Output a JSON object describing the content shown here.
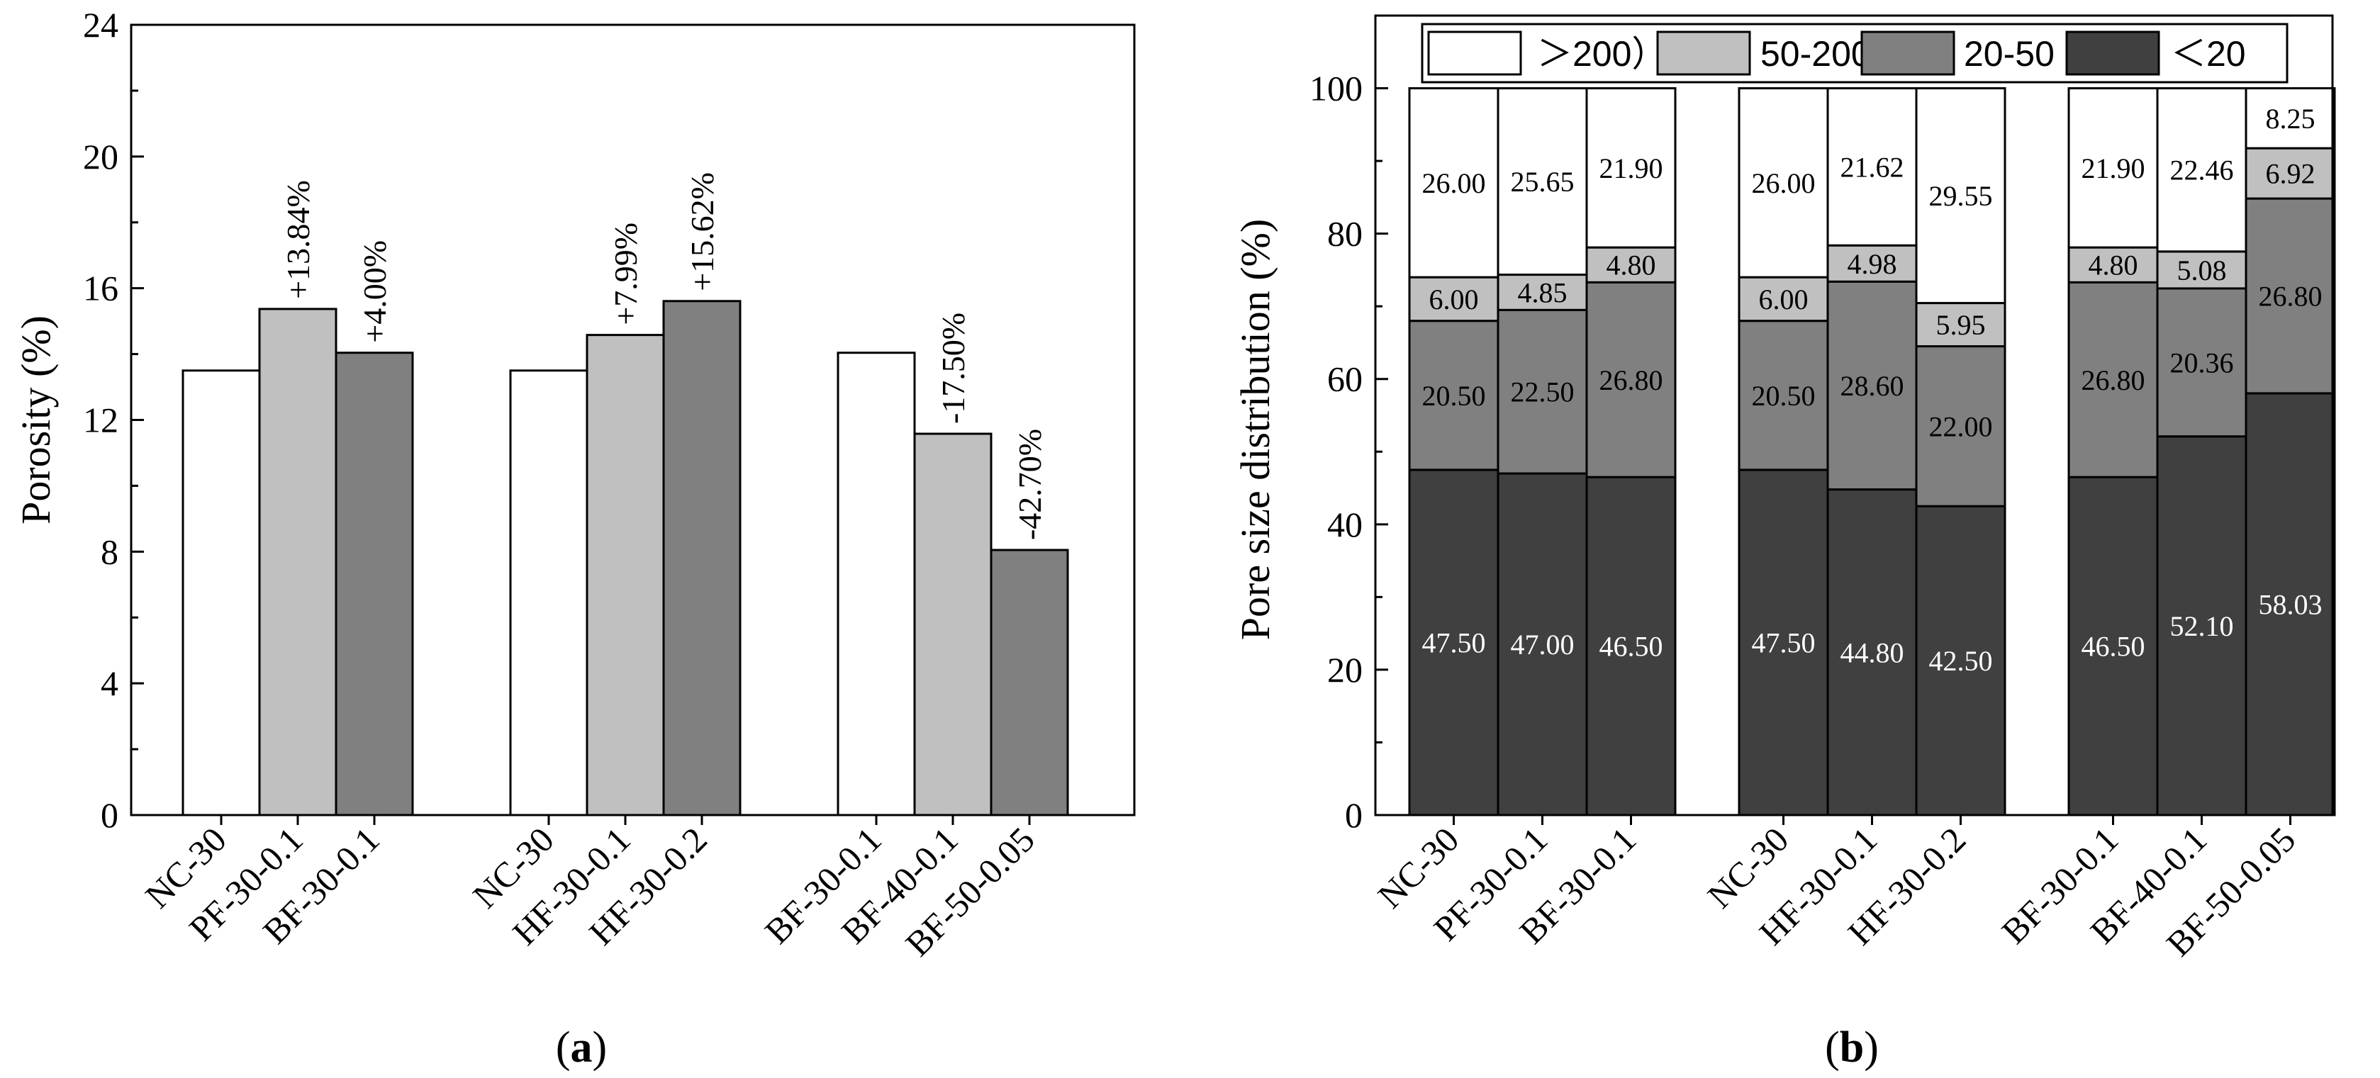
{
  "chart_data": [
    {
      "type": "bar",
      "panel_label": "a",
      "ylabel": "Porosity (%)",
      "xlabel": "",
      "ylim": [
        0,
        24
      ],
      "yticks": [
        "0",
        "4",
        "8",
        "12",
        "16",
        "20",
        "24"
      ],
      "groups": [
        {
          "bars": [
            {
              "label": "NC-30",
              "value": 13.5,
              "color": "#ffffff",
              "annotation": ""
            },
            {
              "label": "PF-30-0.1",
              "value": 15.37,
              "color": "#c0c0c0",
              "annotation": "+13.84%"
            },
            {
              "label": "BF-30-0.1",
              "value": 14.04,
              "color": "#808080",
              "annotation": "+4.00%"
            }
          ]
        },
        {
          "bars": [
            {
              "label": "NC-30",
              "value": 13.5,
              "color": "#ffffff",
              "annotation": ""
            },
            {
              "label": "HF-30-0.1",
              "value": 14.58,
              "color": "#c0c0c0",
              "annotation": "+7.99%"
            },
            {
              "label": "HF-30-0.2",
              "value": 15.61,
              "color": "#808080",
              "annotation": "+15.62%"
            }
          ]
        },
        {
          "bars": [
            {
              "label": "BF-30-0.1",
              "value": 14.04,
              "color": "#ffffff",
              "annotation": ""
            },
            {
              "label": "BF-40-0.1",
              "value": 11.58,
              "color": "#c0c0c0",
              "annotation": "-17.50%"
            },
            {
              "label": "BF-50-0.05",
              "value": 8.05,
              "color": "#808080",
              "annotation": "-42.70%"
            }
          ]
        }
      ]
    },
    {
      "type": "stacked_bar",
      "panel_label": "b",
      "ylabel": "Pore size distribution (%)",
      "xlabel": "",
      "ylim": [
        0,
        110
      ],
      "yticks": [
        "0",
        "20",
        "40",
        "60",
        "80",
        "100"
      ],
      "legend_position": "top",
      "series": [
        {
          "name": "＜20",
          "color": "#404040",
          "label_color": "#ffffff"
        },
        {
          "name": "20-50",
          "color": "#808080",
          "label_color": "#000000"
        },
        {
          "name": "50-200",
          "color": "#c0c0c0",
          "label_color": "#000000"
        },
        {
          "name": "＞200）",
          "color": "#ffffff",
          "label_color": "#000000"
        }
      ],
      "legend_order": [
        "＞200）",
        "50-200",
        "20-50",
        "＜20"
      ],
      "groups": [
        {
          "bars": [
            {
              "label": "NC-30",
              "values": [
                47.5,
                20.5,
                6.0,
                26.0
              ],
              "texts": [
                "47.50",
                "20.50",
                "6.00",
                "26.00"
              ]
            },
            {
              "label": "PF-30-0.1",
              "values": [
                47.0,
                22.5,
                4.85,
                25.65
              ],
              "texts": [
                "47.00",
                "22.50",
                "4.85",
                "25.65"
              ]
            },
            {
              "label": "BF-30-0.1",
              "values": [
                46.5,
                26.8,
                4.8,
                21.9
              ],
              "texts": [
                "46.50",
                "26.80",
                "4.80",
                "21.90"
              ]
            }
          ]
        },
        {
          "bars": [
            {
              "label": "NC-30",
              "values": [
                47.5,
                20.5,
                6.0,
                26.0
              ],
              "texts": [
                "47.50",
                "20.50",
                "6.00",
                "26.00"
              ]
            },
            {
              "label": "HF-30-0.1",
              "values": [
                44.8,
                28.6,
                4.98,
                21.62
              ],
              "texts": [
                "44.80",
                "28.60",
                "4.98",
                "21.62"
              ]
            },
            {
              "label": "HF-30-0.2",
              "values": [
                42.5,
                22.0,
                5.95,
                29.55
              ],
              "texts": [
                "42.50",
                "22.00",
                "5.95",
                "29.55"
              ]
            }
          ]
        },
        {
          "bars": [
            {
              "label": "BF-30-0.1",
              "values": [
                46.5,
                26.8,
                4.8,
                21.9
              ],
              "texts": [
                "46.50",
                "26.80",
                "4.80",
                "21.90"
              ]
            },
            {
              "label": "BF-40-0.1",
              "values": [
                52.1,
                20.36,
                5.08,
                22.46
              ],
              "texts": [
                "52.10",
                "20.36",
                "5.08",
                "22.46"
              ]
            },
            {
              "label": "BF-50-0.05",
              "values": [
                58.03,
                26.8,
                6.92,
                8.25
              ],
              "texts": [
                "58.03",
                "26.80",
                "6.92",
                "8.25"
              ]
            }
          ]
        }
      ]
    }
  ]
}
